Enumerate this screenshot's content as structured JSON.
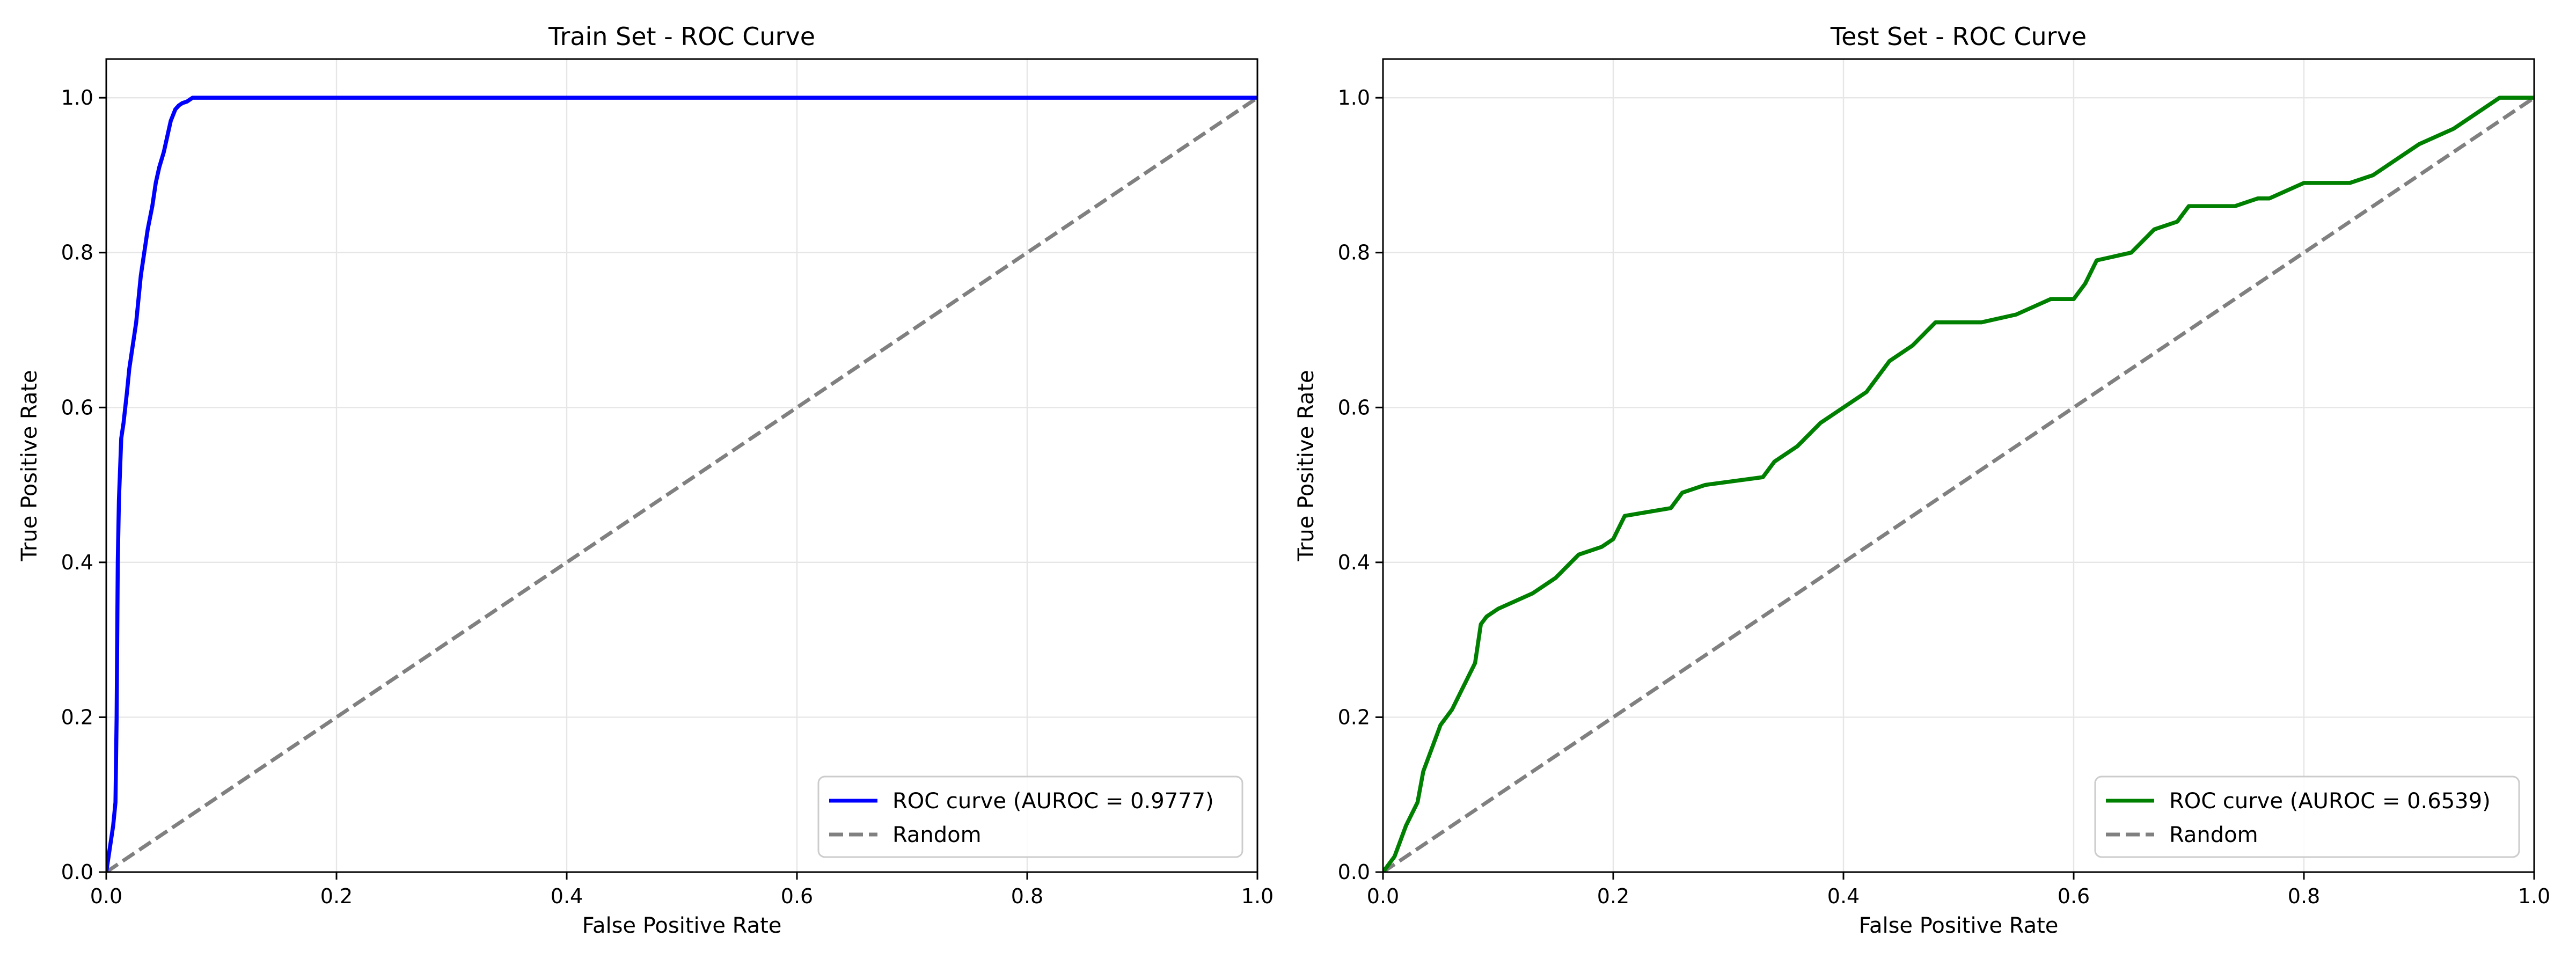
{
  "chart_data": [
    {
      "type": "line",
      "title": "Train Set - ROC Curve",
      "xlabel": "False Positive Rate",
      "ylabel": "True Positive Rate",
      "xlim": [
        0,
        1
      ],
      "ylim": [
        0,
        1.05
      ],
      "xticks": [
        "0.0",
        "0.2",
        "0.4",
        "0.6",
        "0.8",
        "1.0"
      ],
      "yticks": [
        "0.0",
        "0.2",
        "0.4",
        "0.6",
        "0.8",
        "1.0"
      ],
      "grid": true,
      "legend_position": "lower-right",
      "series": [
        {
          "name": "ROC curve (AUROC = 0.9777)",
          "color": "#0000ff",
          "style": "solid",
          "x": [
            0.0,
            0.002,
            0.004,
            0.006,
            0.008,
            0.009,
            0.01,
            0.011,
            0.012,
            0.013,
            0.015,
            0.018,
            0.02,
            0.023,
            0.026,
            0.028,
            0.03,
            0.033,
            0.036,
            0.04,
            0.043,
            0.046,
            0.05,
            0.053,
            0.056,
            0.06,
            0.063,
            0.066,
            0.07,
            0.075,
            0.08,
            0.1,
            1.0
          ],
          "y": [
            0.0,
            0.02,
            0.04,
            0.06,
            0.09,
            0.2,
            0.4,
            0.48,
            0.52,
            0.56,
            0.58,
            0.62,
            0.65,
            0.68,
            0.71,
            0.74,
            0.77,
            0.8,
            0.83,
            0.86,
            0.89,
            0.91,
            0.93,
            0.95,
            0.97,
            0.985,
            0.99,
            0.993,
            0.995,
            1.0,
            1.0,
            1.0,
            1.0
          ]
        },
        {
          "name": "Random",
          "color": "#808080",
          "style": "dashed",
          "x": [
            0,
            1
          ],
          "y": [
            0,
            1
          ]
        }
      ]
    },
    {
      "type": "line",
      "title": "Test Set - ROC Curve",
      "xlabel": "False Positive Rate",
      "ylabel": "True Positive Rate",
      "xlim": [
        0,
        1
      ],
      "ylim": [
        0,
        1.05
      ],
      "xticks": [
        "0.0",
        "0.2",
        "0.4",
        "0.6",
        "0.8",
        "1.0"
      ],
      "yticks": [
        "0.0",
        "0.2",
        "0.4",
        "0.6",
        "0.8",
        "1.0"
      ],
      "grid": true,
      "legend_position": "lower-right",
      "series": [
        {
          "name": "ROC curve (AUROC = 0.6539)",
          "color": "#008000",
          "style": "solid",
          "x": [
            0.0,
            0.01,
            0.02,
            0.03,
            0.035,
            0.04,
            0.05,
            0.06,
            0.07,
            0.08,
            0.085,
            0.09,
            0.1,
            0.13,
            0.15,
            0.17,
            0.19,
            0.2,
            0.21,
            0.25,
            0.26,
            0.28,
            0.33,
            0.34,
            0.36,
            0.38,
            0.4,
            0.42,
            0.44,
            0.46,
            0.48,
            0.52,
            0.55,
            0.58,
            0.6,
            0.61,
            0.62,
            0.65,
            0.67,
            0.69,
            0.7,
            0.74,
            0.76,
            0.77,
            0.8,
            0.84,
            0.86,
            0.88,
            0.9,
            0.93,
            0.95,
            0.97,
            1.0
          ],
          "y": [
            0.0,
            0.02,
            0.06,
            0.09,
            0.13,
            0.15,
            0.19,
            0.21,
            0.24,
            0.27,
            0.32,
            0.33,
            0.34,
            0.36,
            0.38,
            0.41,
            0.42,
            0.43,
            0.46,
            0.47,
            0.49,
            0.5,
            0.51,
            0.53,
            0.55,
            0.58,
            0.6,
            0.62,
            0.66,
            0.68,
            0.71,
            0.71,
            0.72,
            0.74,
            0.74,
            0.76,
            0.79,
            0.8,
            0.83,
            0.84,
            0.86,
            0.86,
            0.87,
            0.87,
            0.89,
            0.89,
            0.9,
            0.92,
            0.94,
            0.96,
            0.98,
            1.0,
            1.0
          ]
        },
        {
          "name": "Random",
          "color": "#808080",
          "style": "dashed",
          "x": [
            0,
            1
          ],
          "y": [
            0,
            1
          ]
        }
      ]
    }
  ]
}
